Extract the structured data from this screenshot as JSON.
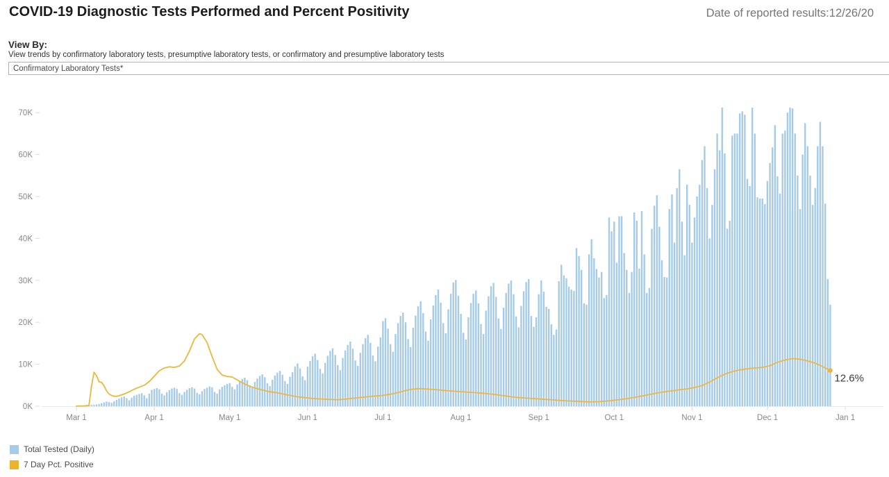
{
  "header": {
    "title": "COVID-19 Diagnostic Tests Performed and Percent Positivity",
    "date_label": "Date of reported results:12/26/20"
  },
  "view_by": {
    "label": "View By:",
    "description": "View trends by confirmatory laboratory tests, presumptive laboratory tests, or confirmatory and presumptive laboratory tests",
    "selected": "Confirmatory Laboratory Tests*"
  },
  "legend": [
    {
      "label": "Total Tested (Daily)",
      "color": "#a6cbe8"
    },
    {
      "label": "7 Day Pct. Positive",
      "color": "#ecb22d"
    }
  ],
  "chart_data": {
    "type": "combo-bar-line",
    "title": "COVID-19 Diagnostic Tests Performed and Percent Positivity",
    "grid": "off",
    "legend_position": "bottom-left",
    "y_axis": {
      "unit": "tests (thousands)",
      "ticks": [
        {
          "label": "0K",
          "k": 0
        },
        {
          "label": "10K",
          "k": 10
        },
        {
          "label": "20K",
          "k": 20
        },
        {
          "label": "30K",
          "k": 30
        },
        {
          "label": "40K",
          "k": 40
        },
        {
          "label": "50K",
          "k": 50
        },
        {
          "label": "60K",
          "k": 60
        },
        {
          "label": "70K",
          "k": 70
        }
      ],
      "ylim_k": [
        0,
        73
      ]
    },
    "x_axis": {
      "start_date": "3/1/20",
      "end_date": "1/1/21",
      "ticks": [
        {
          "label": "Mar 1",
          "day": 0
        },
        {
          "label": "Apr 1",
          "day": 31
        },
        {
          "label": "May 1",
          "day": 61
        },
        {
          "label": "Jun 1",
          "day": 92
        },
        {
          "label": "Jul 1",
          "day": 122
        },
        {
          "label": "Aug 1",
          "day": 153
        },
        {
          "label": "Sep 1",
          "day": 184
        },
        {
          "label": "Oct 1",
          "day": 214
        },
        {
          "label": "Nov 1",
          "day": 245
        },
        {
          "label": "Dec 1",
          "day": 275
        },
        {
          "label": "Jan 1",
          "day": 306
        }
      ]
    },
    "pct_k_equivalent_per_percent": 0.675,
    "annotation": {
      "text": "12.6%",
      "series": "7 Day Pct. Positive",
      "day": 300
    },
    "series": [
      {
        "name": "Total Tested (Daily)",
        "type": "bar",
        "color": "#a6cbe8",
        "unit": "thousands of tests per day, 3/1/20 through 12/26/20",
        "values": [
          0.1,
          0.1,
          0.2,
          0.2,
          0.3,
          0.3,
          0.3,
          0.3,
          0.4,
          0.5,
          0.7,
          0.9,
          1.1,
          1.0,
          0.8,
          1.2,
          1.5,
          1.8,
          2.1,
          2.3,
          1.9,
          1.4,
          2.0,
          2.5,
          2.7,
          2.9,
          3.1,
          2.6,
          1.9,
          3.0,
          3.9,
          4.1,
          4.3,
          4.0,
          3.0,
          2.6,
          3.3,
          3.8,
          4.2,
          4.4,
          4.1,
          3.1,
          2.7,
          3.4,
          3.9,
          4.3,
          4.5,
          4.2,
          3.2,
          2.8,
          3.6,
          4.1,
          4.4,
          4.7,
          4.5,
          3.4,
          3.0,
          4.0,
          4.6,
          5.0,
          5.3,
          5.5,
          4.6,
          4.0,
          5.2,
          6.0,
          6.5,
          6.8,
          6.2,
          5.0,
          4.4,
          5.8,
          6.6,
          7.2,
          7.6,
          6.9,
          5.5,
          4.8,
          6.3,
          7.3,
          8.0,
          8.4,
          7.5,
          6.0,
          5.3,
          7.0,
          8.1,
          9.5,
          10.2,
          9.0,
          7.1,
          6.2,
          9.4,
          10.8,
          11.9,
          12.5,
          11.0,
          8.9,
          7.8,
          10.3,
          12.0,
          13.2,
          13.8,
          12.2,
          9.8,
          8.6,
          11.5,
          13.3,
          14.6,
          15.4,
          13.7,
          10.9,
          9.6,
          12.7,
          14.8,
          16.2,
          17.0,
          15.1,
          12.1,
          10.7,
          14.2,
          16.4,
          20.3,
          21.0,
          18.5,
          14.8,
          13.0,
          17.2,
          19.8,
          21.5,
          22.3,
          20.0,
          16.0,
          14.1,
          18.7,
          21.6,
          23.8,
          25.0,
          22.2,
          17.8,
          15.6,
          20.7,
          24.0,
          26.5,
          27.8,
          24.7,
          19.8,
          17.4,
          23.1,
          26.8,
          29.5,
          30.1,
          26.3,
          22.0,
          17.5,
          15.9,
          21.2,
          24.6,
          26.8,
          27.6,
          24.5,
          19.6,
          17.2,
          22.8,
          26.2,
          28.6,
          29.4,
          26.1,
          20.9,
          18.4,
          23.5,
          27.0,
          29.2,
          30.0,
          26.7,
          21.4,
          18.8,
          23.9,
          27.4,
          29.6,
          30.3,
          21.5,
          18.9,
          21.2,
          26.7,
          30.0,
          27.3,
          23.7,
          23.2,
          19.5,
          17.0,
          18.3,
          29.8,
          33.7,
          31.2,
          30.5,
          28.5,
          27.8,
          27.5,
          37.7,
          35.8,
          32.5,
          24.5,
          24.2,
          36.2,
          39.8,
          35.3,
          32.7,
          30.7,
          32.0,
          25.8,
          26.5,
          45.0,
          41.7,
          44.0,
          34.2,
          45.3,
          45.3,
          36.5,
          32.5,
          27.0,
          32.0,
          46.2,
          44.2,
          32.8,
          46.5,
          36.2,
          27.0,
          28.2,
          42.3,
          47.8,
          50.3,
          42.8,
          34.8,
          30.8,
          30.7,
          47.0,
          50.5,
          39.0,
          52.0,
          56.5,
          44.0,
          36.0,
          52.8,
          48.0,
          39.0,
          45.0,
          50.0,
          52.8,
          58.7,
          62.0,
          52.0,
          40.0,
          48.0,
          56.5,
          65.0,
          61.0,
          71.2,
          60.3,
          42.3,
          44.2,
          64.5,
          65.0,
          65.0,
          69.8,
          70.3,
          69.5,
          54.2,
          52.5,
          71.2,
          65.0,
          49.8,
          49.5,
          49.5,
          48.2,
          53.7,
          58.0,
          61.7,
          67.0,
          54.8,
          50.7,
          65.0,
          65.7,
          70.0,
          71.2,
          71.0,
          65.0,
          55.0,
          47.0,
          60.0,
          67.5,
          62.0,
          55.0,
          48.0,
          52.0,
          62.0,
          67.8,
          62.0,
          48.3,
          30.3,
          24.2
        ]
      },
      {
        "name": "7 Day Pct. Positive",
        "type": "line",
        "color": "#edb63c",
        "unit": "percent positive (7-day), plotted as [day, pct]",
        "end_value_pct": 12.6,
        "points": [
          [
            0,
            0.05
          ],
          [
            4,
            0.1
          ],
          [
            5,
            0.3
          ],
          [
            6,
            7.0
          ],
          [
            7,
            12.0
          ],
          [
            8,
            10.8
          ],
          [
            9,
            8.6
          ],
          [
            10,
            8.4
          ],
          [
            11,
            7.2
          ],
          [
            12,
            5.4
          ],
          [
            13,
            4.3
          ],
          [
            14,
            3.8
          ],
          [
            15,
            3.5
          ],
          [
            16,
            3.5
          ],
          [
            17,
            3.7
          ],
          [
            19,
            4.3
          ],
          [
            21,
            5.1
          ],
          [
            23,
            6.0
          ],
          [
            25,
            6.7
          ],
          [
            27,
            7.4
          ],
          [
            29,
            8.7
          ],
          [
            31,
            10.6
          ],
          [
            33,
            12.5
          ],
          [
            35,
            13.5
          ],
          [
            37,
            13.9
          ],
          [
            39,
            13.7
          ],
          [
            41,
            14.2
          ],
          [
            43,
            16.0
          ],
          [
            45,
            19.5
          ],
          [
            47,
            23.8
          ],
          [
            49,
            25.6
          ],
          [
            50,
            25.3
          ],
          [
            52,
            22.5
          ],
          [
            54,
            17.5
          ],
          [
            56,
            13.0
          ],
          [
            58,
            11.0
          ],
          [
            60,
            10.5
          ],
          [
            62,
            10.3
          ],
          [
            64,
            9.3
          ],
          [
            66,
            8.3
          ],
          [
            68,
            7.4
          ],
          [
            70,
            6.7
          ],
          [
            72,
            6.2
          ],
          [
            74,
            5.7
          ],
          [
            77,
            5.1
          ],
          [
            80,
            4.7
          ],
          [
            84,
            4.0
          ],
          [
            88,
            3.3
          ],
          [
            92,
            2.9
          ],
          [
            96,
            2.6
          ],
          [
            100,
            2.4
          ],
          [
            104,
            2.3
          ],
          [
            106,
            2.4
          ],
          [
            110,
            2.8
          ],
          [
            114,
            3.2
          ],
          [
            118,
            3.5
          ],
          [
            122,
            3.8
          ],
          [
            126,
            4.4
          ],
          [
            130,
            5.3
          ],
          [
            133,
            5.9
          ],
          [
            136,
            6.2
          ],
          [
            139,
            6.1
          ],
          [
            142,
            5.9
          ],
          [
            146,
            5.6
          ],
          [
            150,
            5.3
          ],
          [
            155,
            5.0
          ],
          [
            160,
            4.7
          ],
          [
            165,
            4.3
          ],
          [
            170,
            3.7
          ],
          [
            175,
            3.1
          ],
          [
            180,
            2.8
          ],
          [
            185,
            2.5
          ],
          [
            190,
            2.2
          ],
          [
            195,
            1.9
          ],
          [
            200,
            1.7
          ],
          [
            204,
            1.5
          ],
          [
            208,
            1.6
          ],
          [
            212,
            1.9
          ],
          [
            216,
            2.3
          ],
          [
            220,
            2.8
          ],
          [
            224,
            3.4
          ],
          [
            228,
            4.1
          ],
          [
            232,
            4.8
          ],
          [
            236,
            5.3
          ],
          [
            240,
            5.8
          ],
          [
            243,
            6.1
          ],
          [
            246,
            6.6
          ],
          [
            249,
            7.3
          ],
          [
            252,
            8.5
          ],
          [
            255,
            10.0
          ],
          [
            258,
            11.3
          ],
          [
            261,
            12.2
          ],
          [
            264,
            12.8
          ],
          [
            267,
            13.2
          ],
          [
            270,
            13.5
          ],
          [
            273,
            13.7
          ],
          [
            276,
            14.3
          ],
          [
            279,
            15.5
          ],
          [
            282,
            16.3
          ],
          [
            285,
            16.8
          ],
          [
            288,
            16.6
          ],
          [
            291,
            16.0
          ],
          [
            294,
            15.2
          ],
          [
            297,
            14.0
          ],
          [
            300,
            12.6
          ]
        ]
      }
    ]
  }
}
